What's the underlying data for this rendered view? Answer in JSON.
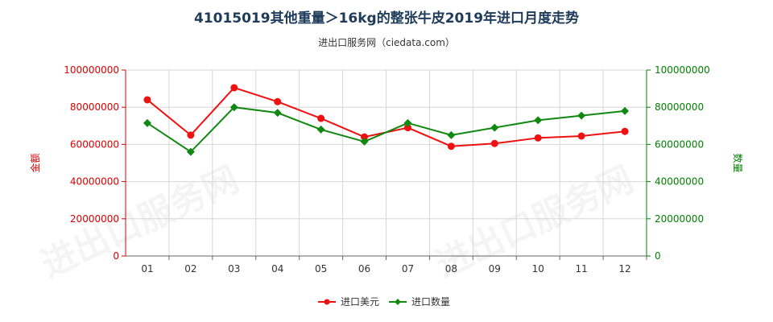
{
  "title": "41015019其他重量＞16kg的整张牛皮2019年进口月度走势",
  "subtitle": "进出口服务网（ciedata.com）",
  "watermark": "进出口服务网",
  "chart_data": {
    "type": "line",
    "categories": [
      "01",
      "02",
      "03",
      "04",
      "05",
      "06",
      "07",
      "08",
      "09",
      "10",
      "11",
      "12"
    ],
    "y_left": {
      "label": "金额",
      "ticks": [
        "0",
        "20000000",
        "40000000",
        "60000000",
        "80000000",
        "100000000"
      ],
      "range": [
        0,
        100000000
      ],
      "color": "#dd0000"
    },
    "y_right": {
      "label": "数量",
      "ticks": [
        "0",
        "20000000",
        "40000000",
        "60000000",
        "80000000",
        "100000000"
      ],
      "range": [
        0,
        100000000
      ],
      "color": "#008000"
    },
    "grid": true,
    "legend_position": "bottom",
    "series": [
      {
        "name": "进口美元",
        "axis": "left",
        "color": "#ee1111",
        "marker": "circle",
        "values": [
          84000000,
          65000000,
          90500000,
          83000000,
          74000000,
          64000000,
          69000000,
          59000000,
          60500000,
          63500000,
          64500000,
          67000000
        ]
      },
      {
        "name": "进口数量",
        "axis": "right",
        "color": "#118811",
        "marker": "diamond",
        "values": [
          71500000,
          56000000,
          80000000,
          77000000,
          68000000,
          61500000,
          71500000,
          65000000,
          69000000,
          73000000,
          75500000,
          78000000
        ]
      }
    ]
  }
}
